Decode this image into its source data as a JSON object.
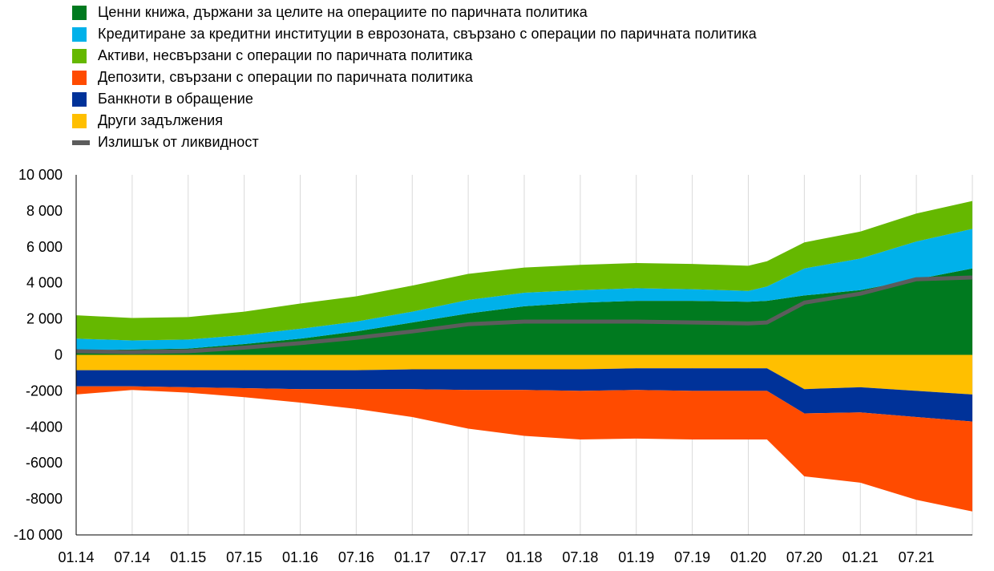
{
  "colors": {
    "securities": "#007a1f",
    "lending": "#00b1ea",
    "other_assets": "#65b800",
    "deposits": "#ff4b00",
    "banknotes": "#003299",
    "other_liabilities": "#ffbf00",
    "excess_liquidity": "#5c5c5c",
    "grid": "#d9d9d9"
  },
  "chart_data": {
    "type": "area",
    "title": "",
    "xlabel": "",
    "ylabel": "",
    "ylim": [
      -10000,
      10000
    ],
    "y_ticks": [
      10000,
      8000,
      6000,
      4000,
      2000,
      0,
      -2000,
      -4000,
      -6000,
      -8000,
      -10000
    ],
    "y_tick_labels": [
      "10 000",
      "8 000",
      "6 000",
      "4 000",
      "2 000",
      "0",
      "-2000",
      "-4000",
      "-6000",
      "-8000",
      "-10 000"
    ],
    "x_tick_labels": [
      "01.14",
      "07.14",
      "01.15",
      "07.15",
      "01.16",
      "07.16",
      "01.17",
      "07.17",
      "01.18",
      "07.18",
      "01.19",
      "07.19",
      "01.20",
      "07.20",
      "01.21",
      "07.21"
    ],
    "grid": "vertical",
    "legend_position": "top-left",
    "x": [
      "2014-01",
      "2014-07",
      "2015-01",
      "2015-07",
      "2016-01",
      "2016-07",
      "2017-01",
      "2017-07",
      "2018-01",
      "2018-07",
      "2019-01",
      "2019-07",
      "2020-01",
      "2020-03",
      "2020-07",
      "2021-01",
      "2021-07",
      "2021-12"
    ],
    "series": [
      {
        "name": "Ценни книжа, държани за целите на операциите по паричната политика",
        "key": "securities",
        "stack": "positive",
        "values": [
          250,
          300,
          350,
          600,
          900,
          1300,
          1800,
          2300,
          2700,
          2900,
          3000,
          3000,
          2950,
          3000,
          3300,
          3600,
          4200,
          4800
        ]
      },
      {
        "name": "Кредитиране за кредитни институции в еврозоната, свързано с операции по паричната политика",
        "key": "lending",
        "stack": "positive",
        "values": [
          650,
          500,
          500,
          500,
          550,
          550,
          600,
          750,
          750,
          700,
          700,
          650,
          600,
          800,
          1500,
          1750,
          2100,
          2200
        ]
      },
      {
        "name": "Активи, несвързани с операции по паричната политика",
        "key": "other_assets",
        "stack": "positive",
        "values": [
          1300,
          1250,
          1250,
          1300,
          1400,
          1400,
          1450,
          1450,
          1400,
          1400,
          1400,
          1400,
          1400,
          1400,
          1450,
          1500,
          1550,
          1550
        ]
      },
      {
        "name": "Депозити, свързани с операции по паричната политика",
        "key": "deposits",
        "stack": "negative",
        "values": [
          -450,
          -200,
          -300,
          -500,
          -750,
          -1100,
          -1550,
          -2150,
          -2550,
          -2700,
          -2700,
          -2700,
          -2700,
          -2700,
          -3500,
          -3900,
          -4600,
          -5000
        ]
      },
      {
        "name": "Банкноти в обращение",
        "key": "banknotes",
        "stack": "negative",
        "values": [
          -900,
          -900,
          -950,
          -1000,
          -1050,
          -1050,
          -1100,
          -1150,
          -1150,
          -1200,
          -1200,
          -1250,
          -1250,
          -1250,
          -1350,
          -1400,
          -1450,
          -1500
        ]
      },
      {
        "name": "Други задължения",
        "key": "other_liabilities",
        "stack": "negative",
        "values": [
          -850,
          -850,
          -850,
          -850,
          -850,
          -850,
          -800,
          -800,
          -800,
          -800,
          -750,
          -750,
          -750,
          -750,
          -1900,
          -1800,
          -2000,
          -2200
        ]
      },
      {
        "name": "Излишък от ликвидност",
        "key": "excess_liquidity",
        "type": "line",
        "values": [
          200,
          150,
          200,
          400,
          650,
          950,
          1300,
          1700,
          1850,
          1850,
          1850,
          1800,
          1750,
          1800,
          2900,
          3400,
          4200,
          4300
        ]
      }
    ]
  }
}
